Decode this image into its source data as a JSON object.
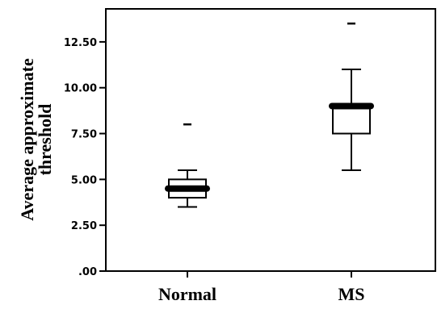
{
  "chart_data": {
    "type": "box",
    "title": "",
    "xlabel": "",
    "ylabel": [
      "Average approximate",
      "threshold"
    ],
    "ylim": [
      0,
      14.3
    ],
    "yticks": [
      {
        "value": 0,
        "label": ".00"
      },
      {
        "value": 2.5,
        "label": "2.50"
      },
      {
        "value": 5,
        "label": "5.00"
      },
      {
        "value": 7.5,
        "label": "7.50"
      },
      {
        "value": 10,
        "label": "10.00"
      },
      {
        "value": 12.5,
        "label": "12.50"
      }
    ],
    "categories": [
      "Normal",
      "MS"
    ],
    "boxes": [
      {
        "name": "Normal",
        "min": 3.5,
        "q1": 4.0,
        "median": 4.5,
        "q3": 5.0,
        "max": 5.5,
        "outliers": [
          8.0
        ]
      },
      {
        "name": "MS",
        "min": 5.5,
        "q1": 7.5,
        "median": 9.0,
        "q3": 9.0,
        "max": 11.0,
        "outliers": [
          13.5
        ]
      }
    ],
    "grid": false,
    "colors": {
      "stroke": "#000000",
      "box_fill": "#ffffff"
    }
  }
}
